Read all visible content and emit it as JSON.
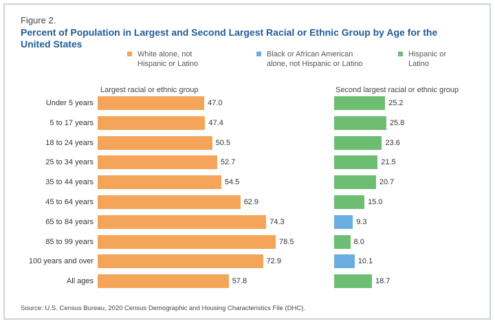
{
  "figure_label": "Figure 2.",
  "chart_data": {
    "type": "bar",
    "orientation": "horizontal",
    "title": "Percent of Population in Largest and Second Largest Racial or Ethnic Group by Age for the United States",
    "legend": [
      {
        "name": "White alone, not Hispanic or Latino",
        "color": "#f5a55a"
      },
      {
        "name": "Black or African American alone, not Hispanic or Latino",
        "color": "#6aade0"
      },
      {
        "name": "Hispanic or Latino",
        "color": "#6dbe72"
      }
    ],
    "legend_position": "top",
    "categories": [
      "Under 5 years",
      "5 to 17 years",
      "18 to 24 years",
      "25 to 34 years",
      "35 to 44 years",
      "45 to 64 years",
      "65 to 84 years",
      "85 to 99 years",
      "100 years and over",
      "All ages"
    ],
    "panels": [
      {
        "title": "Largest racial or ethnic group",
        "values": [
          47.0,
          47.4,
          50.5,
          52.7,
          54.5,
          62.9,
          74.3,
          78.5,
          72.9,
          57.8
        ],
        "groups": [
          "White alone, not Hispanic or Latino",
          "White alone, not Hispanic or Latino",
          "White alone, not Hispanic or Latino",
          "White alone, not Hispanic or Latino",
          "White alone, not Hispanic or Latino",
          "White alone, not Hispanic or Latino",
          "White alone, not Hispanic or Latino",
          "White alone, not Hispanic or Latino",
          "White alone, not Hispanic or Latino",
          "White alone, not Hispanic or Latino"
        ]
      },
      {
        "title": "Second largest racial or ethnic group",
        "values": [
          25.2,
          25.8,
          23.6,
          21.5,
          20.7,
          15.0,
          9.3,
          8.0,
          10.1,
          18.7
        ],
        "groups": [
          "Hispanic or Latino",
          "Hispanic or Latino",
          "Hispanic or Latino",
          "Hispanic or Latino",
          "Hispanic or Latino",
          "Hispanic or Latino",
          "Black or African American alone, not Hispanic or Latino",
          "Hispanic or Latino",
          "Black or African American alone, not Hispanic or Latino",
          "Hispanic or Latino"
        ]
      }
    ],
    "grid": false
  },
  "legend_lines": [
    [
      "White alone, not",
      "Hispanic or Latino"
    ],
    [
      "Black or African American",
      "alone, not Hispanic or Latino"
    ],
    [
      "Hispanic or",
      "Latino"
    ]
  ],
  "source": "Source: U.S. Census Bureau, 2020 Census Demographic and Housing Characteristics File (DHC)."
}
